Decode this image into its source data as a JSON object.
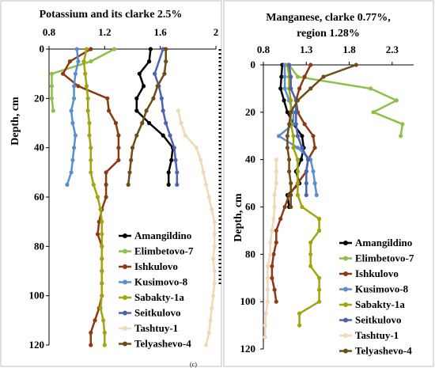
{
  "figure": {
    "caption_mark": "(c)",
    "colors": {
      "Amangildino": "#000000",
      "Elimbetovo-7": "#8fbf4b",
      "Ishkulovo": "#8b3a12",
      "Kusimovo-8": "#5b8fcc",
      "Sabakty-1a": "#a0a510",
      "Seitkulovo": "#4c63b0",
      "Tashtuy-1": "#efd9b8",
      "Telyashevo-4": "#6e4c18"
    }
  },
  "chart_data": [
    {
      "type": "line",
      "title": "Potassium and its clarke 2.5%",
      "xlabel": "",
      "ylabel": "Depth, cm",
      "xlim": [
        0.8,
        2.0
      ],
      "ylim": [
        0,
        120
      ],
      "y_inverted": true,
      "x_ticks": [
        "0.8",
        "1.2",
        "1.6",
        "2"
      ],
      "y_ticks": [
        "0",
        "20",
        "40",
        "60",
        "80",
        "100",
        "120"
      ],
      "legend_position": "bottom-right",
      "series": [
        {
          "name": "Amangildino",
          "points": [
            [
              1.53,
              0
            ],
            [
              1.52,
              5
            ],
            [
              1.45,
              10
            ],
            [
              1.48,
              15
            ],
            [
              1.43,
              20
            ],
            [
              1.43,
              25
            ],
            [
              1.52,
              30
            ],
            [
              1.62,
              35
            ],
            [
              1.69,
              40
            ],
            [
              1.68,
              45
            ],
            [
              1.66,
              50
            ],
            [
              1.66,
              55
            ]
          ]
        },
        {
          "name": "Elimbetovo-7",
          "points": [
            [
              1.27,
              0
            ],
            [
              1.1,
              5
            ],
            [
              0.82,
              10
            ],
            [
              0.82,
              15
            ],
            [
              0.82,
              20
            ],
            [
              0.83,
              25
            ]
          ]
        },
        {
          "name": "Ishkulovo",
          "points": [
            [
              1.1,
              0
            ],
            [
              0.95,
              5
            ],
            [
              0.9,
              10
            ],
            [
              1.01,
              15
            ],
            [
              1.22,
              20
            ],
            [
              1.23,
              25
            ],
            [
              1.28,
              30
            ],
            [
              1.3,
              35
            ],
            [
              1.3,
              40
            ],
            [
              1.3,
              45
            ],
            [
              1.21,
              50
            ],
            [
              1.21,
              55
            ],
            [
              1.21,
              60
            ],
            [
              1.18,
              65
            ],
            [
              1.16,
              70
            ],
            [
              1.15,
              75
            ],
            [
              1.18,
              80
            ],
            [
              1.18,
              85
            ],
            [
              1.18,
              90
            ],
            [
              1.18,
              95
            ],
            [
              1.18,
              100
            ],
            [
              1.16,
              105
            ],
            [
              1.13,
              110
            ],
            [
              1.1,
              115
            ],
            [
              1.1,
              120
            ]
          ]
        },
        {
          "name": "Kusimovo-8",
          "points": [
            [
              1.0,
              0
            ],
            [
              1.01,
              5
            ],
            [
              0.99,
              10
            ],
            [
              0.98,
              15
            ],
            [
              0.98,
              20
            ],
            [
              0.96,
              25
            ],
            [
              0.97,
              30
            ],
            [
              0.99,
              35
            ],
            [
              0.98,
              40
            ],
            [
              0.97,
              45
            ],
            [
              0.96,
              50
            ],
            [
              0.93,
              55
            ]
          ]
        },
        {
          "name": "Sabakty-1a",
          "points": [
            [
              1.07,
              0
            ],
            [
              1.05,
              5
            ],
            [
              1.06,
              10
            ],
            [
              1.07,
              15
            ],
            [
              1.08,
              20
            ],
            [
              1.08,
              25
            ],
            [
              1.09,
              30
            ],
            [
              1.09,
              35
            ],
            [
              1.1,
              40
            ],
            [
              1.1,
              45
            ],
            [
              1.1,
              50
            ],
            [
              1.12,
              55
            ],
            [
              1.15,
              60
            ],
            [
              1.17,
              65
            ],
            [
              1.18,
              70
            ],
            [
              1.18,
              75
            ],
            [
              1.18,
              80
            ],
            [
              1.18,
              85
            ],
            [
              1.18,
              90
            ],
            [
              1.18,
              95
            ],
            [
              1.18,
              100
            ],
            [
              1.17,
              105
            ],
            [
              1.19,
              110
            ],
            [
              1.2,
              115
            ],
            [
              1.2,
              120
            ]
          ]
        },
        {
          "name": "Seitkulovo",
          "points": [
            [
              1.62,
              0
            ],
            [
              1.56,
              10
            ],
            [
              1.59,
              15
            ],
            [
              1.61,
              20
            ],
            [
              1.62,
              25
            ],
            [
              1.64,
              30
            ],
            [
              1.67,
              35
            ],
            [
              1.7,
              40
            ],
            [
              1.71,
              45
            ],
            [
              1.72,
              50
            ],
            [
              1.72,
              55
            ]
          ]
        },
        {
          "name": "Tashtuy-1",
          "points": [
            [
              1.73,
              25
            ],
            [
              1.75,
              30
            ],
            [
              1.78,
              35
            ],
            [
              1.86,
              40
            ],
            [
              1.89,
              45
            ],
            [
              1.91,
              50
            ],
            [
              1.93,
              55
            ],
            [
              1.95,
              60
            ],
            [
              1.97,
              65
            ],
            [
              1.99,
              70
            ],
            [
              1.99,
              75
            ],
            [
              1.99,
              80
            ],
            [
              1.98,
              85
            ],
            [
              1.99,
              90
            ],
            [
              1.99,
              95
            ],
            [
              1.98,
              100
            ],
            [
              1.97,
              105
            ],
            [
              1.96,
              110
            ],
            [
              1.95,
              115
            ],
            [
              1.93,
              120
            ]
          ]
        },
        {
          "name": "Telyashevo-4",
          "points": [
            [
              1.64,
              0
            ],
            [
              1.64,
              5
            ],
            [
              1.63,
              10
            ],
            [
              1.58,
              15
            ],
            [
              1.55,
              20
            ],
            [
              1.5,
              25
            ],
            [
              1.47,
              30
            ],
            [
              1.43,
              35
            ],
            [
              1.4,
              40
            ],
            [
              1.39,
              45
            ],
            [
              1.38,
              50
            ],
            [
              1.37,
              55
            ]
          ]
        }
      ]
    },
    {
      "type": "line",
      "title": "Manganese, clarke 0.77%,",
      "subtitle": "region 1.28%",
      "xlabel": "",
      "ylabel": "Depth, cm",
      "xlim": [
        0.8,
        2.55
      ],
      "ylim": [
        0,
        120
      ],
      "y_inverted": true,
      "x_ticks": [
        "0.8",
        "1.3",
        "1.8",
        "2.3"
      ],
      "y_ticks": [
        "0",
        "20",
        "40",
        "60",
        "80",
        "100",
        "120"
      ],
      "legend_position": "bottom-right",
      "series": [
        {
          "name": "Amangildino",
          "points": [
            [
              1.02,
              0
            ],
            [
              1.01,
              5
            ],
            [
              1.0,
              10
            ],
            [
              1.04,
              15
            ],
            [
              1.08,
              20
            ],
            [
              1.15,
              25
            ],
            [
              1.25,
              30
            ],
            [
              1.27,
              35
            ],
            [
              1.24,
              40
            ],
            [
              1.18,
              45
            ],
            [
              1.22,
              50
            ],
            [
              1.08,
              55
            ],
            [
              1.1,
              60
            ]
          ]
        },
        {
          "name": "Elimbetovo-7",
          "points": [
            [
              1.1,
              0
            ],
            [
              1.2,
              5
            ],
            [
              2.05,
              10
            ],
            [
              2.35,
              15
            ],
            [
              2.08,
              20
            ],
            [
              2.42,
              25
            ],
            [
              2.4,
              30
            ]
          ]
        },
        {
          "name": "Ishkulovo",
          "points": [
            [
              1.35,
              0
            ],
            [
              1.28,
              5
            ],
            [
              1.22,
              10
            ],
            [
              1.18,
              15
            ],
            [
              1.2,
              20
            ],
            [
              1.28,
              25
            ],
            [
              1.38,
              30
            ],
            [
              1.4,
              35
            ],
            [
              1.32,
              40
            ],
            [
              1.3,
              45
            ],
            [
              1.2,
              50
            ],
            [
              1.1,
              55
            ],
            [
              1.05,
              60
            ],
            [
              1.0,
              65
            ],
            [
              0.95,
              70
            ],
            [
              0.95,
              75
            ],
            [
              0.92,
              80
            ],
            [
              0.9,
              85
            ],
            [
              0.9,
              90
            ],
            [
              0.93,
              95
            ],
            [
              0.95,
              100
            ]
          ]
        },
        {
          "name": "Kusimovo-8",
          "points": [
            [
              1.05,
              0
            ],
            [
              1.05,
              5
            ],
            [
              1.05,
              10
            ],
            [
              1.1,
              15
            ],
            [
              1.15,
              20
            ],
            [
              1.15,
              25
            ],
            [
              0.98,
              30
            ],
            [
              1.2,
              35
            ],
            [
              1.35,
              40
            ],
            [
              1.38,
              45
            ],
            [
              1.4,
              50
            ],
            [
              1.42,
              55
            ]
          ]
        },
        {
          "name": "Sabakty-1a",
          "points": [
            [
              1.08,
              0
            ],
            [
              1.1,
              5
            ],
            [
              1.1,
              10
            ],
            [
              1.12,
              15
            ],
            [
              1.12,
              20
            ],
            [
              1.12,
              25
            ],
            [
              1.15,
              30
            ],
            [
              1.15,
              35
            ],
            [
              1.2,
              40
            ],
            [
              1.2,
              45
            ],
            [
              1.2,
              50
            ],
            [
              1.2,
              55
            ],
            [
              1.25,
              60
            ],
            [
              1.45,
              65
            ],
            [
              1.45,
              70
            ],
            [
              1.35,
              75
            ],
            [
              1.35,
              80
            ],
            [
              1.35,
              85
            ],
            [
              1.45,
              90
            ],
            [
              1.45,
              95
            ],
            [
              1.45,
              100
            ],
            [
              1.22,
              105
            ],
            [
              1.22,
              110
            ]
          ]
        },
        {
          "name": "Seitkulovo",
          "points": [
            [
              1.1,
              0
            ],
            [
              1.12,
              5
            ],
            [
              1.12,
              10
            ],
            [
              1.18,
              15
            ],
            [
              1.18,
              20
            ],
            [
              1.18,
              25
            ],
            [
              1.2,
              30
            ],
            [
              1.25,
              35
            ],
            [
              1.32,
              40
            ],
            [
              1.3,
              45
            ],
            [
              1.3,
              50
            ],
            [
              1.3,
              55
            ]
          ]
        },
        {
          "name": "Tashtuy-1",
          "points": [
            [
              0.95,
              40
            ],
            [
              0.95,
              45
            ],
            [
              0.95,
              50
            ],
            [
              0.93,
              55
            ],
            [
              0.93,
              60
            ],
            [
              0.92,
              65
            ],
            [
              0.9,
              70
            ],
            [
              0.88,
              75
            ],
            [
              0.88,
              80
            ],
            [
              0.85,
              85
            ],
            [
              0.85,
              90
            ],
            [
              0.85,
              95
            ],
            [
              0.85,
              100
            ],
            [
              0.83,
              105
            ],
            [
              0.82,
              110
            ],
            [
              0.82,
              115
            ]
          ]
        },
        {
          "name": "Telyashevo-4",
          "points": [
            [
              1.88,
              0
            ],
            [
              1.5,
              5
            ],
            [
              1.35,
              10
            ],
            [
              1.2,
              15
            ],
            [
              1.12,
              20
            ],
            [
              1.1,
              25
            ],
            [
              1.08,
              30
            ],
            [
              1.08,
              35
            ],
            [
              1.1,
              40
            ],
            [
              1.1,
              45
            ],
            [
              1.12,
              50
            ],
            [
              1.12,
              55
            ],
            [
              1.12,
              60
            ]
          ]
        }
      ]
    }
  ]
}
